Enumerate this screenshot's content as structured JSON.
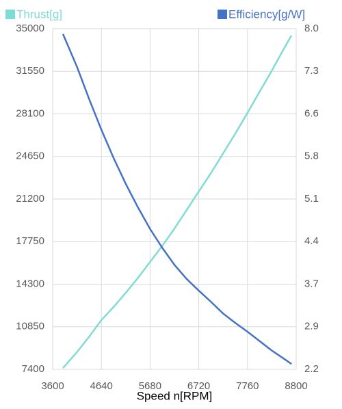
{
  "chart_data": {
    "type": "line",
    "x_label": "Speed n[RPM]",
    "x": [
      3820,
      4120,
      4380,
      4640,
      4900,
      5160,
      5420,
      5680,
      5940,
      6200,
      6460,
      6720,
      6980,
      7240,
      7500,
      7760,
      8020,
      8280,
      8540,
      8700
    ],
    "series": [
      {
        "name": "Thrust[g]",
        "color": "#7fdcd4",
        "axis": "y",
        "values": [
          7500,
          8800,
          10050,
          11390,
          12450,
          13600,
          14800,
          16100,
          17400,
          18800,
          20300,
          21810,
          23300,
          24900,
          26500,
          28180,
          29900,
          31600,
          33400,
          34450
        ]
      },
      {
        "name": "Efficiency[g/W]",
        "color": "#4472c4",
        "axis": "y2",
        "values": [
          7.91,
          7.35,
          6.8,
          6.28,
          5.8,
          5.36,
          4.96,
          4.59,
          4.27,
          3.98,
          3.74,
          3.54,
          3.35,
          3.15,
          2.99,
          2.84,
          2.68,
          2.52,
          2.38,
          2.29
        ]
      }
    ],
    "xlim": [
      3600,
      8800
    ],
    "xticks": [
      3600,
      4640,
      5680,
      6720,
      7760,
      8800
    ],
    "ylim": [
      7400,
      35000
    ],
    "yticks": [
      7400,
      10850,
      14300,
      17750,
      21200,
      24650,
      28100,
      31550,
      35000
    ],
    "y2lim": [
      2.2,
      8
    ],
    "y2ticks": [
      2.2,
      {
        "value": 2.925,
        "label": "2.9"
      },
      {
        "value": 3.65,
        "label": "3.7"
      },
      {
        "value": 4.375,
        "label": "4.4"
      },
      5.1,
      {
        "value": 5.825,
        "label": "5.8"
      },
      {
        "value": 6.55,
        "label": "6.6"
      },
      {
        "value": 7.275,
        "label": "7.3"
      },
      {
        "value": 8,
        "label": "8.0"
      }
    ],
    "grid": true,
    "legend": "top"
  }
}
